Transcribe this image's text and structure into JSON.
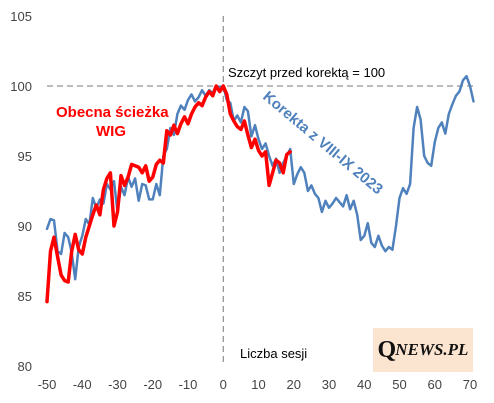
{
  "chart_data": {
    "type": "line",
    "xlim": [
      -50,
      70
    ],
    "ylim": [
      80,
      105
    ],
    "x_ticks": [
      "-50",
      "-40",
      "-30",
      "-20",
      "-10",
      "0",
      "10",
      "20",
      "30",
      "40",
      "50",
      "60",
      "70"
    ],
    "y_ticks": [
      "80",
      "85",
      "90",
      "95",
      "100",
      "105"
    ],
    "grid": false,
    "series": [
      {
        "name": "Korekta z VIII-IX 2023",
        "color": "#4f81bd",
        "points": [
          [
            -50,
            89.8
          ],
          [
            -49,
            90.5
          ],
          [
            -48,
            90.4
          ],
          [
            -47,
            88.2
          ],
          [
            -46,
            88.0
          ],
          [
            -45,
            89.5
          ],
          [
            -44,
            89.2
          ],
          [
            -43,
            88.1
          ],
          [
            -42,
            86.2
          ],
          [
            -41,
            88.5
          ],
          [
            -40,
            89.3
          ],
          [
            -39,
            90.5
          ],
          [
            -38,
            90.1
          ],
          [
            -37,
            92.0
          ],
          [
            -36,
            91.3
          ],
          [
            -35,
            91.9
          ],
          [
            -34,
            91.6
          ],
          [
            -33,
            93.0
          ],
          [
            -32,
            92.6
          ],
          [
            -31,
            93.2
          ],
          [
            -30,
            91.0
          ],
          [
            -29,
            92.8
          ],
          [
            -28,
            92.2
          ],
          [
            -27,
            93.5
          ],
          [
            -26,
            92.8
          ],
          [
            -25,
            93.4
          ],
          [
            -24,
            91.8
          ],
          [
            -23,
            93.0
          ],
          [
            -22,
            92.9
          ],
          [
            -21,
            91.9
          ],
          [
            -20,
            91.9
          ],
          [
            -19,
            93.0
          ],
          [
            -18,
            92.2
          ],
          [
            -17,
            95.0
          ],
          [
            -16,
            95.5
          ],
          [
            -15,
            97.0
          ],
          [
            -14,
            96.5
          ],
          [
            -13,
            98.0
          ],
          [
            -12,
            98.6
          ],
          [
            -11,
            98.3
          ],
          [
            -10,
            99.0
          ],
          [
            -9,
            99.4
          ],
          [
            -8,
            98.9
          ],
          [
            -7,
            99.2
          ],
          [
            -6,
            99.7
          ],
          [
            -5,
            99.3
          ],
          [
            -4,
            99.7
          ],
          [
            -3,
            99.5
          ],
          [
            -2,
            100.0
          ],
          [
            -1,
            99.9
          ],
          [
            0,
            100.0
          ],
          [
            1,
            99.0
          ],
          [
            2,
            98.8
          ],
          [
            3,
            97.5
          ],
          [
            4,
            97.9
          ],
          [
            5,
            97.4
          ],
          [
            6,
            98.5
          ],
          [
            7,
            98.2
          ],
          [
            8,
            96.4
          ],
          [
            9,
            97.2
          ],
          [
            10,
            96.2
          ],
          [
            11,
            95.5
          ],
          [
            12,
            95.9
          ],
          [
            13,
            95.0
          ],
          [
            14,
            94.3
          ],
          [
            15,
            94.8
          ],
          [
            16,
            93.8
          ],
          [
            17,
            94.5
          ],
          [
            18,
            95.0
          ],
          [
            19,
            95.5
          ],
          [
            20,
            93.0
          ],
          [
            21,
            93.7
          ],
          [
            22,
            94.2
          ],
          [
            23,
            93.8
          ],
          [
            24,
            92.5
          ],
          [
            25,
            92.9
          ],
          [
            26,
            92.3
          ],
          [
            27,
            92.0
          ],
          [
            28,
            91.0
          ],
          [
            29,
            91.8
          ],
          [
            30,
            91.3
          ],
          [
            31,
            91.6
          ],
          [
            32,
            92.0
          ],
          [
            33,
            91.7
          ],
          [
            34,
            91.4
          ],
          [
            35,
            92.2
          ],
          [
            36,
            91.2
          ],
          [
            37,
            91.8
          ],
          [
            38,
            90.8
          ],
          [
            39,
            89.0
          ],
          [
            40,
            89.3
          ],
          [
            41,
            90.2
          ],
          [
            42,
            88.8
          ],
          [
            43,
            88.5
          ],
          [
            44,
            89.3
          ],
          [
            45,
            88.6
          ],
          [
            46,
            88.2
          ],
          [
            47,
            88.5
          ],
          [
            48,
            88.3
          ],
          [
            49,
            90.0
          ],
          [
            50,
            92.0
          ],
          [
            51,
            92.7
          ],
          [
            52,
            92.3
          ],
          [
            53,
            93.0
          ],
          [
            54,
            97.0
          ],
          [
            55,
            98.5
          ],
          [
            56,
            97.6
          ],
          [
            57,
            95.0
          ],
          [
            58,
            94.5
          ],
          [
            59,
            94.3
          ],
          [
            60,
            96.0
          ],
          [
            61,
            97.0
          ],
          [
            62,
            97.4
          ],
          [
            63,
            96.6
          ],
          [
            64,
            98.0
          ],
          [
            65,
            98.7
          ],
          [
            66,
            99.3
          ],
          [
            67,
            99.6
          ],
          [
            68,
            100.4
          ],
          [
            69,
            100.7
          ],
          [
            70,
            100.0
          ],
          [
            71,
            98.9
          ]
        ]
      },
      {
        "name": "Obecna ścieżka WIG",
        "color": "#ff0000",
        "points": [
          [
            -50,
            84.6
          ],
          [
            -49,
            88.2
          ],
          [
            -48,
            89.2
          ],
          [
            -47,
            87.8
          ],
          [
            -46,
            86.5
          ],
          [
            -45,
            86.1
          ],
          [
            -44,
            86.0
          ],
          [
            -43,
            88.2
          ],
          [
            -42,
            89.4
          ],
          [
            -41,
            88.3
          ],
          [
            -40,
            88.0
          ],
          [
            -39,
            89.2
          ],
          [
            -38,
            90.0
          ],
          [
            -37,
            90.8
          ],
          [
            -36,
            91.5
          ],
          [
            -35,
            90.8
          ],
          [
            -34,
            92.6
          ],
          [
            -33,
            93.4
          ],
          [
            -32,
            93.8
          ],
          [
            -31,
            90.0
          ],
          [
            -30,
            91.0
          ],
          [
            -29,
            93.6
          ],
          [
            -28,
            92.9
          ],
          [
            -27,
            93.5
          ],
          [
            -26,
            94.4
          ],
          [
            -25,
            94.3
          ],
          [
            -24,
            94.2
          ],
          [
            -23,
            93.8
          ],
          [
            -22,
            94.3
          ],
          [
            -21,
            93.2
          ],
          [
            -20,
            93.5
          ],
          [
            -19,
            94.4
          ],
          [
            -18,
            94.7
          ],
          [
            -17,
            94.5
          ],
          [
            -16,
            96.8
          ],
          [
            -15,
            96.5
          ],
          [
            -14,
            97.2
          ],
          [
            -13,
            96.6
          ],
          [
            -12,
            97.3
          ],
          [
            -11,
            97.8
          ],
          [
            -10,
            97.3
          ],
          [
            -9,
            98.0
          ],
          [
            -8,
            98.5
          ],
          [
            -7,
            98.8
          ],
          [
            -6,
            98.6
          ],
          [
            -5,
            99.2
          ],
          [
            -4,
            99.6
          ],
          [
            -3,
            99.3
          ],
          [
            -2,
            100.0
          ],
          [
            -1,
            99.6
          ],
          [
            0,
            100.0
          ],
          [
            1,
            99.4
          ],
          [
            2,
            98.0
          ],
          [
            3,
            97.5
          ],
          [
            4,
            97.1
          ],
          [
            5,
            96.9
          ],
          [
            6,
            97.5
          ],
          [
            7,
            96.5
          ],
          [
            8,
            95.6
          ],
          [
            9,
            96.2
          ],
          [
            10,
            95.4
          ],
          [
            11,
            95.0
          ],
          [
            12,
            95.3
          ],
          [
            13,
            92.9
          ],
          [
            14,
            93.8
          ],
          [
            15,
            94.7
          ],
          [
            16,
            94.5
          ],
          [
            17,
            93.8
          ],
          [
            18,
            95.1
          ],
          [
            19,
            95.3
          ]
        ]
      }
    ],
    "annotations": {
      "peak_label": "Szczyt przed korektą = 100",
      "xlabel": "Liczba sesji",
      "red_label_line1": "Obecna ścieżka",
      "red_label_line2": "WIG",
      "blue_label": "Korekta z VIII-IX 2023"
    }
  },
  "logo": {
    "big": "Q",
    "small": "NEWS.PL"
  }
}
